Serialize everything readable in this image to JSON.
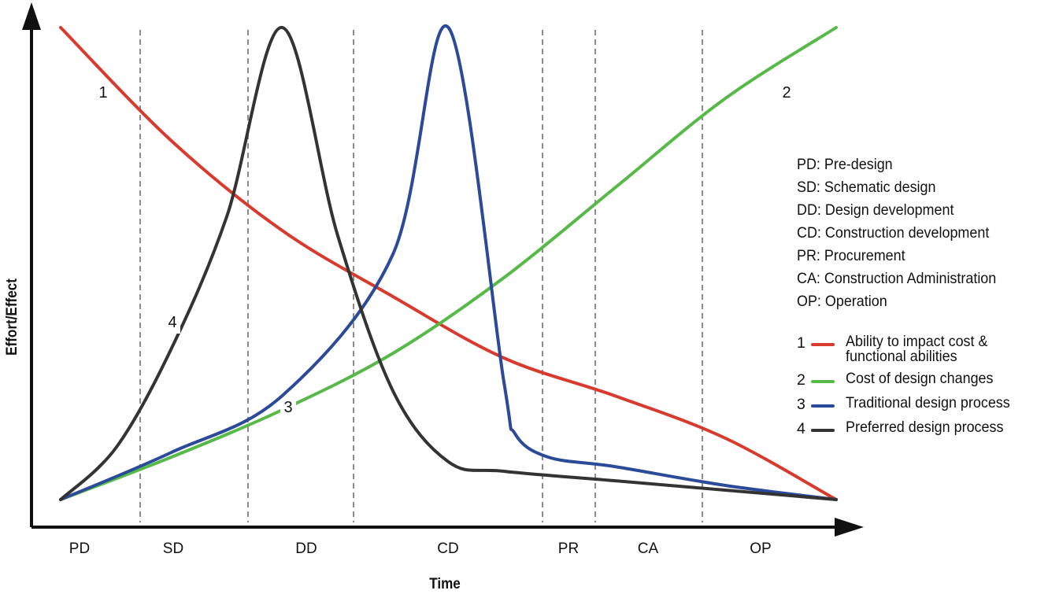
{
  "chart_data": {
    "type": "line",
    "xlabel": "Time",
    "ylabel": "Effort/Effect",
    "categories": [
      "PD",
      "SD",
      "DD",
      "CD",
      "PR",
      "CA",
      "OP"
    ],
    "phase_boundaries": [
      1,
      2,
      3,
      4,
      5,
      6
    ],
    "series": [
      {
        "name": "Ability to impact cost & functional abilities",
        "number_label": "1",
        "color": "#d83a2e",
        "x": [
          0,
          1,
          2,
          3,
          4,
          5,
          6,
          7
        ],
        "values": [
          100,
          76,
          57,
          43,
          30,
          22,
          13,
          0
        ]
      },
      {
        "name": "Cost of design changes",
        "number_label": "2",
        "color": "#57b947",
        "x": [
          0,
          1,
          2,
          3,
          4,
          5,
          6,
          7
        ],
        "values": [
          0,
          9,
          19,
          31,
          47,
          66,
          85,
          100
        ]
      },
      {
        "name": "Traditional design process",
        "number_label": "3",
        "color": "#2c4a9a",
        "x": [
          0,
          1,
          2,
          3,
          3.5,
          4,
          4.1,
          4.4,
          5,
          6,
          7
        ],
        "values": [
          0,
          10,
          22,
          52,
          100,
          25,
          14,
          9,
          7,
          3,
          0
        ]
      },
      {
        "name": "Preferred design process",
        "number_label": "4",
        "color": "#333333",
        "x": [
          0,
          0.5,
          1,
          1.5,
          2,
          2.5,
          3,
          3.5,
          4,
          5,
          6,
          7
        ],
        "values": [
          0,
          11,
          32,
          60,
          100,
          56,
          23,
          8,
          6,
          4,
          2,
          0
        ]
      }
    ],
    "ylim": [
      0,
      100
    ],
    "xlim": [
      0,
      7
    ],
    "grid": false,
    "legend_position": "right"
  },
  "abbreviations": [
    "PD: Pre-design",
    "SD: Schematic design",
    "DD: Design development",
    "CD: Construction development",
    "PR:  Procurement",
    "CA: Construction Administration",
    "OP: Operation"
  ],
  "legend": [
    {
      "num": "1",
      "color": "#d83a2e",
      "label": "Ability to impact cost &",
      "label2": "functional abilities"
    },
    {
      "num": "2",
      "color": "#57b947",
      "label": "Cost of design changes"
    },
    {
      "num": "3",
      "color": "#2c4a9a",
      "label": "Traditional design process"
    },
    {
      "num": "4",
      "color": "#333333",
      "label": "Preferred design process"
    }
  ]
}
